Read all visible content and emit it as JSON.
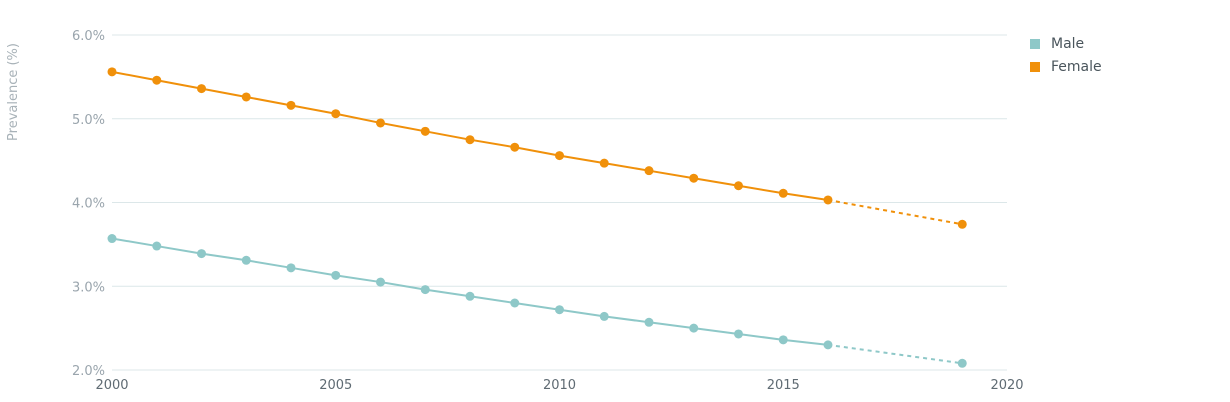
{
  "chart_data": {
    "type": "line",
    "ylabel": "Prevalence (%)",
    "xlabel": "",
    "xlim": [
      2000,
      2020
    ],
    "ylim": [
      2.0,
      6.0
    ],
    "x_ticks": [
      "2000",
      "2005",
      "2010",
      "2015",
      "2020"
    ],
    "y_ticks": [
      "2.0%",
      "3.0%",
      "4.0%",
      "5.0%",
      "6.0%"
    ],
    "grid": true,
    "legend_position": "top-right",
    "x": [
      2000,
      2001,
      2002,
      2003,
      2004,
      2005,
      2006,
      2007,
      2008,
      2009,
      2010,
      2011,
      2012,
      2013,
      2014,
      2015,
      2016
    ],
    "projection_x": 2019,
    "series": [
      {
        "name": "Male",
        "color": "#8ec8c8",
        "values": [
          3.57,
          3.48,
          3.39,
          3.31,
          3.22,
          3.13,
          3.05,
          2.96,
          2.88,
          2.8,
          2.72,
          2.64,
          2.57,
          2.5,
          2.43,
          2.36,
          2.3
        ],
        "projection_value": 2.08
      },
      {
        "name": "Female",
        "color": "#f0900a",
        "values": [
          5.56,
          5.46,
          5.36,
          5.26,
          5.16,
          5.06,
          4.95,
          4.85,
          4.75,
          4.66,
          4.56,
          4.47,
          4.38,
          4.29,
          4.2,
          4.11,
          4.03
        ],
        "projection_value": 3.74
      }
    ]
  }
}
